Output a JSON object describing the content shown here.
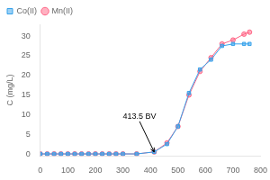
{
  "chart_data": {
    "type": "line",
    "x": [
      0,
      25,
      50,
      75,
      100,
      125,
      150,
      175,
      200,
      225,
      250,
      275,
      300,
      350,
      413.5,
      460,
      500,
      540,
      580,
      620,
      660,
      700,
      740,
      760
    ],
    "series": [
      {
        "name": "Co(II)",
        "marker": "square",
        "values": [
          0,
          0,
          0,
          0,
          0,
          0,
          0,
          0,
          0,
          0,
          0,
          0,
          0,
          0,
          0.5,
          2.5,
          7.0,
          15.5,
          21.5,
          24.0,
          27.5,
          28.0,
          28.0,
          28.0
        ]
      },
      {
        "name": "Mn(II)",
        "marker": "circle",
        "values": [
          0,
          0,
          0,
          0,
          0,
          0,
          0,
          0,
          0,
          0,
          0,
          0,
          0,
          0,
          0.5,
          2.8,
          7.0,
          15.0,
          21.0,
          24.5,
          28.0,
          29.0,
          30.5,
          31.0
        ]
      }
    ],
    "y_label": "C (mg/L)",
    "annotations": [
      {
        "text": "413.5 BV",
        "xy": [
          413.5,
          0.5
        ],
        "xytext": [
          300,
          8.5
        ]
      }
    ],
    "xlim": [
      0,
      800
    ],
    "ylim": [
      -0.5,
      33
    ],
    "xticks": [
      0,
      100,
      200,
      300,
      400,
      500,
      600,
      700,
      800
    ],
    "yticks": [
      0,
      5,
      10,
      15,
      20,
      25,
      30
    ],
    "grid": false,
    "legend": "upper left"
  }
}
